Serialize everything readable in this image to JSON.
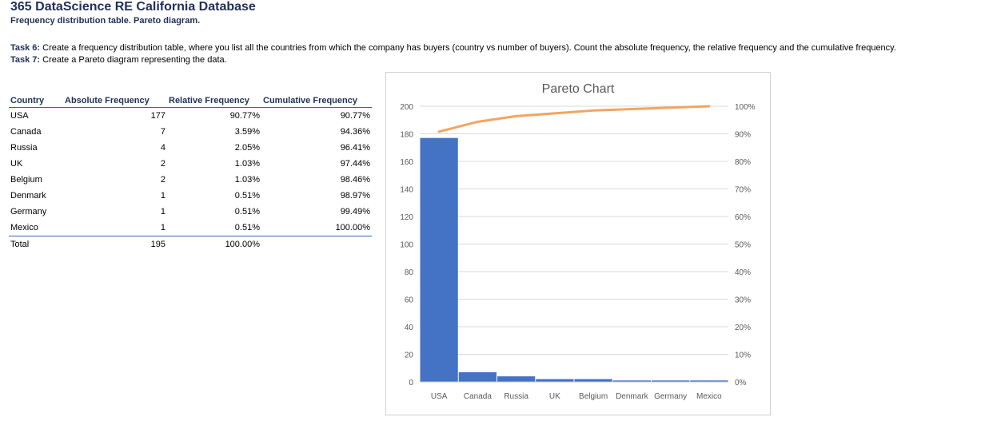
{
  "header": {
    "title": "365 DataScience RE California Database",
    "subtitle": "Frequency distribution table. Pareto diagram."
  },
  "tasks": {
    "task6_label": "Task 6:",
    "task6_text": "Create a frequency distribution table, where you list all the countries from which the company has buyers (country vs number of buyers). Count the absolute frequency, the relative frequency and the cumulative frequency.",
    "task7_label": "Task 7:",
    "task7_text": "Create a Pareto diagram representing the data."
  },
  "table": {
    "headers": [
      "Country",
      "Absolute Frequency",
      "Relative Frequency",
      "Cumulative Frequency"
    ],
    "rows": [
      [
        "USA",
        "177",
        "90.77%",
        "90.77%"
      ],
      [
        "Canada",
        "7",
        "3.59%",
        "94.36%"
      ],
      [
        "Russia",
        "4",
        "2.05%",
        "96.41%"
      ],
      [
        "UK",
        "2",
        "1.03%",
        "97.44%"
      ],
      [
        "Belgium",
        "2",
        "1.03%",
        "98.46%"
      ],
      [
        "Denmark",
        "1",
        "0.51%",
        "98.97%"
      ],
      [
        "Germany",
        "1",
        "0.51%",
        "99.49%"
      ],
      [
        "Mexico",
        "1",
        "0.51%",
        "100.00%"
      ]
    ],
    "total": [
      "Total",
      "195",
      "100.00%",
      ""
    ]
  },
  "chart_data": {
    "type": "bar",
    "title": "Pareto Chart",
    "categories": [
      "USA",
      "Canada",
      "Russia",
      "UK",
      "Belgium",
      "Denmark",
      "Germany",
      "Mexico"
    ],
    "series": [
      {
        "type": "bar",
        "values": [
          177,
          7,
          4,
          2,
          2,
          1,
          1,
          1
        ],
        "color": "#4472c4",
        "axis": "left"
      },
      {
        "type": "line",
        "values": [
          90.77,
          94.36,
          96.41,
          97.44,
          98.46,
          98.97,
          99.49,
          100.0
        ],
        "color": "#f4a460",
        "axis": "right"
      }
    ],
    "ylim": [
      0,
      200
    ],
    "yticks": [
      0,
      20,
      40,
      60,
      80,
      100,
      120,
      140,
      160,
      180,
      200
    ],
    "y2lim": [
      0,
      100
    ],
    "y2ticks": [
      "0%",
      "10%",
      "20%",
      "30%",
      "40%",
      "50%",
      "60%",
      "70%",
      "80%",
      "90%",
      "100%"
    ],
    "grid": true,
    "gridColor": "#d9d9d9"
  }
}
